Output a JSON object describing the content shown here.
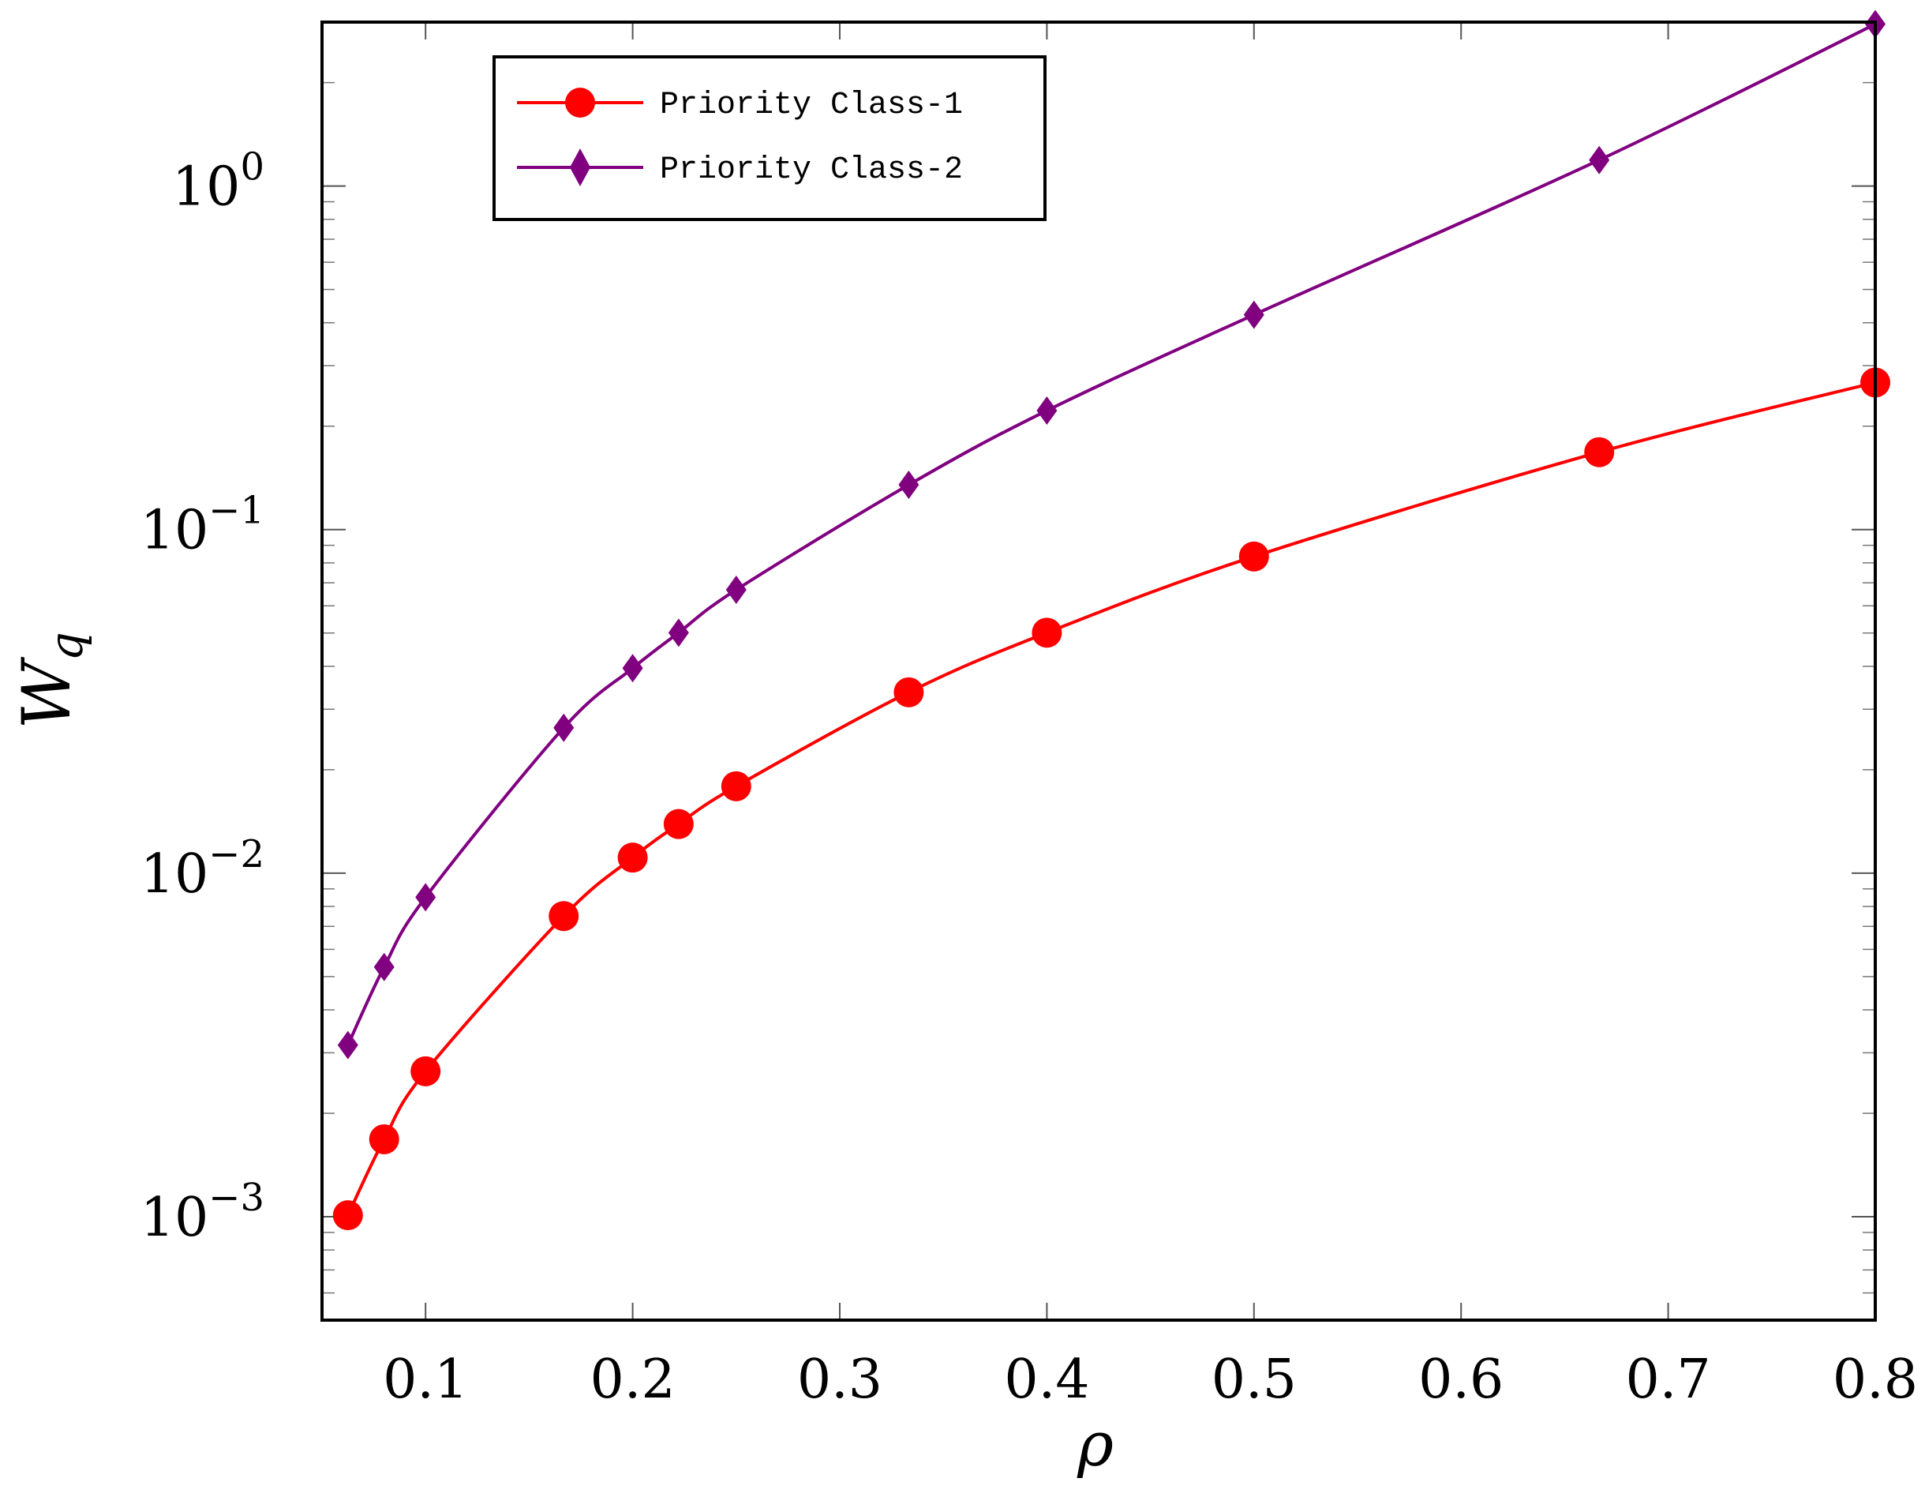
{
  "chart_data": {
    "type": "line",
    "xlabel": "ρ",
    "ylabel": {
      "base": "W",
      "subscript": "q"
    },
    "yscale": "log",
    "xlim": [
      0.05,
      0.8
    ],
    "ylim": [
      0.0005,
      3.0
    ],
    "xticks": [
      0.1,
      0.2,
      0.3,
      0.4,
      0.5,
      0.6,
      0.7,
      0.8
    ],
    "xtick_labels": [
      "0.1",
      "0.2",
      "0.3",
      "0.4",
      "0.5",
      "0.6",
      "0.7",
      "0.8"
    ],
    "yticks": [
      {
        "value": 0.001,
        "base": "10",
        "exp": "−3"
      },
      {
        "value": 0.01,
        "base": "10",
        "exp": "−2"
      },
      {
        "value": 0.1,
        "base": "10",
        "exp": "−1"
      },
      {
        "value": 1,
        "base": "10",
        "exp": "0"
      }
    ],
    "legend_position": "top-left",
    "series": [
      {
        "name": "Priority Class-1",
        "color": "#ff0000",
        "marker": "circle",
        "x": [
          0.0625,
          0.08,
          0.1,
          0.1667,
          0.2,
          0.2222,
          0.25,
          0.3333,
          0.4,
          0.5,
          0.6667,
          0.8
        ],
        "y": [
          0.00101,
          0.00168,
          0.00265,
          0.0075,
          0.0111,
          0.0139,
          0.0179,
          0.0336,
          0.0501,
          0.0835,
          0.168,
          0.268
        ]
      },
      {
        "name": "Priority Class-2",
        "color": "#800080",
        "marker": "diamond",
        "x": [
          0.0625,
          0.08,
          0.1,
          0.1667,
          0.2,
          0.2222,
          0.25,
          0.3333,
          0.4,
          0.5,
          0.6667,
          0.8
        ],
        "y": [
          0.00316,
          0.00533,
          0.00851,
          0.0265,
          0.0395,
          0.0501,
          0.0668,
          0.135,
          0.222,
          0.422,
          1.19,
          2.96
        ]
      }
    ]
  }
}
